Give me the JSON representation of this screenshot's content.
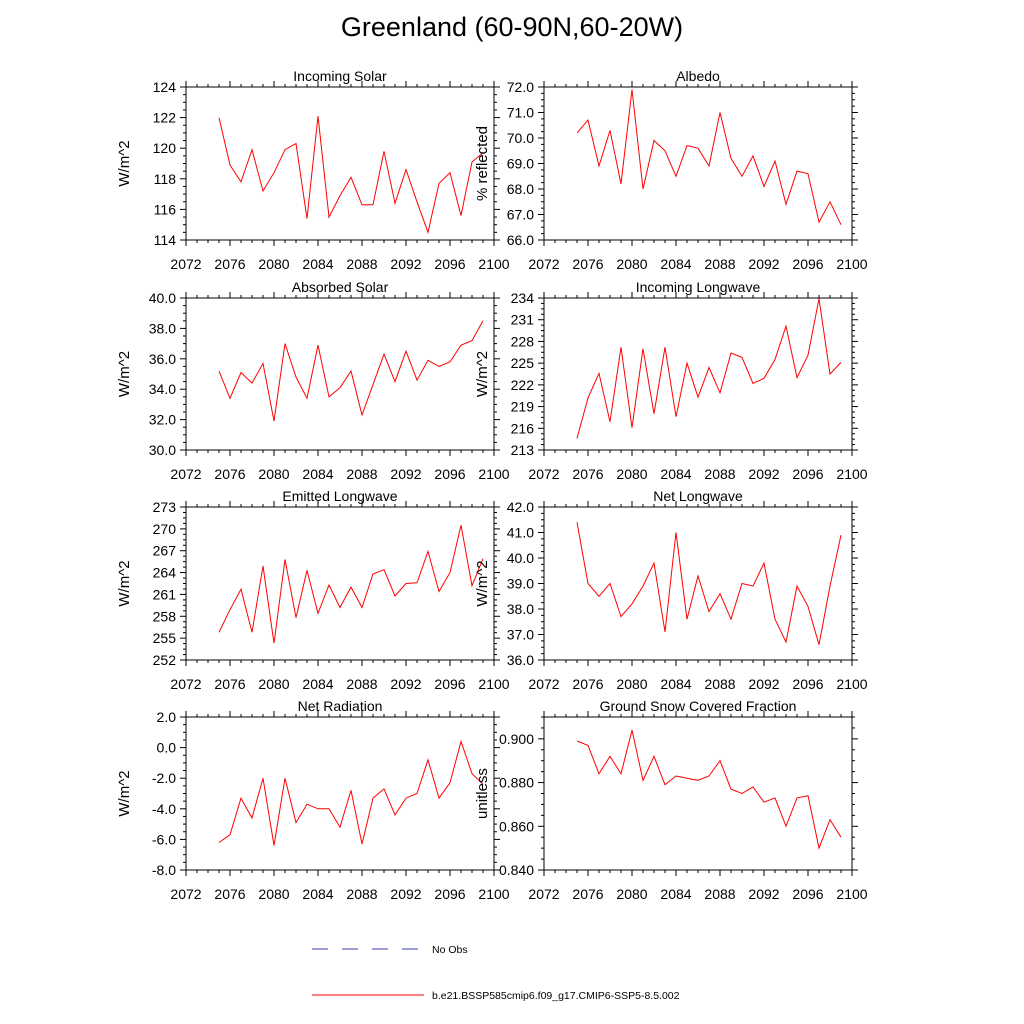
{
  "title": "Greenland (60-90N,60-20W)",
  "legend": {
    "obs_label": "No Obs",
    "obs_color": "#3b3bb0",
    "model_label": "b.e21.BSSP585cmip6.f09_g17.CMIP6-SSP5-8.5.002",
    "model_color": "#ff0000"
  },
  "chart_data": [
    {
      "type": "line",
      "title": "Incoming Solar",
      "ylabel": "W/m^2",
      "xlim": [
        2072,
        2100
      ],
      "ylim": [
        114,
        124
      ],
      "xticks": [
        "2072",
        "2076",
        "2080",
        "2084",
        "2088",
        "2092",
        "2096",
        "2100"
      ],
      "yticks": [
        "114",
        "116",
        "118",
        "120",
        "122",
        "124"
      ],
      "x": [
        2075,
        2076,
        2077,
        2078,
        2079,
        2080,
        2081,
        2082,
        2083,
        2084,
        2085,
        2086,
        2087,
        2088,
        2089,
        2090,
        2091,
        2092,
        2093,
        2094,
        2095,
        2096,
        2097,
        2098,
        2099
      ],
      "series": [
        {
          "values": [
            122.0,
            118.9,
            117.8,
            119.9,
            117.2,
            118.4,
            119.9,
            120.3,
            115.4,
            122.1,
            115.5,
            116.9,
            118.1,
            116.3,
            116.3,
            119.8,
            116.4,
            118.6,
            116.5,
            114.5,
            117.7,
            118.4,
            115.6,
            119.1,
            119.7
          ]
        }
      ]
    },
    {
      "type": "line",
      "title": "Albedo",
      "ylabel": "% reflected",
      "xlim": [
        2072,
        2100
      ],
      "ylim": [
        66.0,
        72.0
      ],
      "xticks": [
        "2072",
        "2076",
        "2080",
        "2084",
        "2088",
        "2092",
        "2096",
        "2100"
      ],
      "yticks": [
        "66.0",
        "67.0",
        "68.0",
        "69.0",
        "70.0",
        "71.0",
        "72.0"
      ],
      "x": [
        2075,
        2076,
        2077,
        2078,
        2079,
        2080,
        2081,
        2082,
        2083,
        2084,
        2085,
        2086,
        2087,
        2088,
        2089,
        2090,
        2091,
        2092,
        2093,
        2094,
        2095,
        2096,
        2097,
        2098,
        2099
      ],
      "series": [
        {
          "values": [
            70.2,
            70.7,
            68.9,
            70.3,
            68.2,
            71.9,
            68.0,
            69.9,
            69.5,
            68.5,
            69.7,
            69.6,
            68.9,
            71.0,
            69.2,
            68.5,
            69.3,
            68.1,
            69.1,
            67.4,
            68.7,
            68.6,
            66.7,
            67.5,
            66.6
          ]
        }
      ]
    },
    {
      "type": "line",
      "title": "Absorbed Solar",
      "ylabel": "W/m^2",
      "xlim": [
        2072,
        2100
      ],
      "ylim": [
        30.0,
        40.0
      ],
      "xticks": [
        "2072",
        "2076",
        "2080",
        "2084",
        "2088",
        "2092",
        "2096",
        "2100"
      ],
      "yticks": [
        "30.0",
        "32.0",
        "34.0",
        "36.0",
        "38.0",
        "40.0"
      ],
      "x": [
        2075,
        2076,
        2077,
        2078,
        2079,
        2080,
        2081,
        2082,
        2083,
        2084,
        2085,
        2086,
        2087,
        2088,
        2089,
        2090,
        2091,
        2092,
        2093,
        2094,
        2095,
        2096,
        2097,
        2098,
        2099
      ],
      "series": [
        {
          "values": [
            35.2,
            33.4,
            35.1,
            34.4,
            35.7,
            31.9,
            37.0,
            34.8,
            33.4,
            36.9,
            33.5,
            34.1,
            35.2,
            32.3,
            34.3,
            36.3,
            34.5,
            36.5,
            34.6,
            35.9,
            35.5,
            35.8,
            36.9,
            37.2,
            38.5
          ]
        }
      ]
    },
    {
      "type": "line",
      "title": "Incoming Longwave",
      "ylabel": "W/m^2",
      "xlim": [
        2072,
        2100
      ],
      "ylim": [
        213,
        234
      ],
      "xticks": [
        "2072",
        "2076",
        "2080",
        "2084",
        "2088",
        "2092",
        "2096",
        "2100"
      ],
      "yticks": [
        "213",
        "216",
        "219",
        "222",
        "225",
        "228",
        "231",
        "234"
      ],
      "x": [
        2075,
        2076,
        2077,
        2078,
        2079,
        2080,
        2081,
        2082,
        2083,
        2084,
        2085,
        2086,
        2087,
        2088,
        2089,
        2090,
        2091,
        2092,
        2093,
        2094,
        2095,
        2096,
        2097,
        2098,
        2099
      ],
      "series": [
        {
          "values": [
            214.6,
            220.2,
            223.6,
            216.9,
            227.2,
            216.1,
            227.0,
            218.0,
            227.2,
            217.6,
            225.0,
            220.3,
            224.4,
            220.9,
            226.4,
            225.8,
            222.2,
            222.9,
            225.5,
            230.1,
            223.0,
            226.1,
            233.9,
            223.5,
            225.1
          ]
        }
      ]
    },
    {
      "type": "line",
      "title": "Emitted Longwave",
      "ylabel": "W/m^2",
      "xlim": [
        2072,
        2100
      ],
      "ylim": [
        252,
        273
      ],
      "xticks": [
        "2072",
        "2076",
        "2080",
        "2084",
        "2088",
        "2092",
        "2096",
        "2100"
      ],
      "yticks": [
        "252",
        "255",
        "258",
        "261",
        "264",
        "267",
        "270",
        "273"
      ],
      "x": [
        2075,
        2076,
        2077,
        2078,
        2079,
        2080,
        2081,
        2082,
        2083,
        2084,
        2085,
        2086,
        2087,
        2088,
        2089,
        2090,
        2091,
        2092,
        2093,
        2094,
        2095,
        2096,
        2097,
        2098,
        2099
      ],
      "series": [
        {
          "values": [
            255.8,
            258.9,
            261.7,
            255.8,
            264.9,
            254.3,
            265.8,
            257.8,
            264.3,
            258.4,
            262.3,
            259.2,
            262.0,
            259.2,
            263.8,
            264.4,
            260.8,
            262.5,
            262.6,
            266.9,
            261.4,
            264.0,
            270.5,
            262.2,
            265.9
          ]
        }
      ]
    },
    {
      "type": "line",
      "title": "Net Longwave",
      "ylabel": "W/m^2",
      "xlim": [
        2072,
        2100
      ],
      "ylim": [
        36.0,
        42.0
      ],
      "xticks": [
        "2072",
        "2076",
        "2080",
        "2084",
        "2088",
        "2092",
        "2096",
        "2100"
      ],
      "yticks": [
        "36.0",
        "37.0",
        "38.0",
        "39.0",
        "40.0",
        "41.0",
        "42.0"
      ],
      "x": [
        2075,
        2076,
        2077,
        2078,
        2079,
        2080,
        2081,
        2082,
        2083,
        2084,
        2085,
        2086,
        2087,
        2088,
        2089,
        2090,
        2091,
        2092,
        2093,
        2094,
        2095,
        2096,
        2097,
        2098,
        2099
      ],
      "series": [
        {
          "values": [
            41.4,
            39.0,
            38.5,
            39.0,
            37.7,
            38.2,
            38.9,
            39.8,
            37.1,
            41.0,
            37.6,
            39.3,
            37.9,
            38.6,
            37.6,
            39.0,
            38.9,
            39.8,
            37.6,
            36.7,
            38.9,
            38.1,
            36.6,
            38.9,
            40.9
          ]
        }
      ]
    },
    {
      "type": "line",
      "title": "Net Radiation",
      "ylabel": "W/m^2",
      "xlim": [
        2072,
        2100
      ],
      "ylim": [
        -8.0,
        2.0
      ],
      "xticks": [
        "2072",
        "2076",
        "2080",
        "2084",
        "2088",
        "2092",
        "2096",
        "2100"
      ],
      "yticks": [
        "-8.0",
        "-6.0",
        "-4.0",
        "-2.0",
        "0.0",
        "2.0"
      ],
      "x": [
        2075,
        2076,
        2077,
        2078,
        2079,
        2080,
        2081,
        2082,
        2083,
        2084,
        2085,
        2086,
        2087,
        2088,
        2089,
        2090,
        2091,
        2092,
        2093,
        2094,
        2095,
        2096,
        2097,
        2098,
        2099
      ],
      "series": [
        {
          "values": [
            -6.2,
            -5.7,
            -3.3,
            -4.6,
            -2.0,
            -6.4,
            -2.0,
            -4.9,
            -3.7,
            -4.0,
            -4.0,
            -5.2,
            -2.8,
            -6.3,
            -3.3,
            -2.7,
            -4.4,
            -3.3,
            -3.0,
            -0.8,
            -3.3,
            -2.3,
            0.4,
            -1.7,
            -2.4
          ]
        }
      ]
    },
    {
      "type": "line",
      "title": "Ground Snow Covered Fraction",
      "ylabel": "unitless",
      "xlim": [
        2072,
        2100
      ],
      "ylim": [
        0.84,
        0.91
      ],
      "xticks": [
        "2072",
        "2076",
        "2080",
        "2084",
        "2088",
        "2092",
        "2096",
        "2100"
      ],
      "yticks": [
        "0.840",
        "0.860",
        "0.880",
        "0.900"
      ],
      "x": [
        2075,
        2076,
        2077,
        2078,
        2079,
        2080,
        2081,
        2082,
        2083,
        2084,
        2085,
        2086,
        2087,
        2088,
        2089,
        2090,
        2091,
        2092,
        2093,
        2094,
        2095,
        2096,
        2097,
        2098,
        2099
      ],
      "series": [
        {
          "values": [
            0.899,
            0.897,
            0.884,
            0.892,
            0.884,
            0.904,
            0.881,
            0.892,
            0.879,
            0.883,
            0.882,
            0.881,
            0.883,
            0.89,
            0.877,
            0.875,
            0.878,
            0.871,
            0.873,
            0.86,
            0.873,
            0.874,
            0.85,
            0.863,
            0.855
          ]
        }
      ]
    }
  ]
}
